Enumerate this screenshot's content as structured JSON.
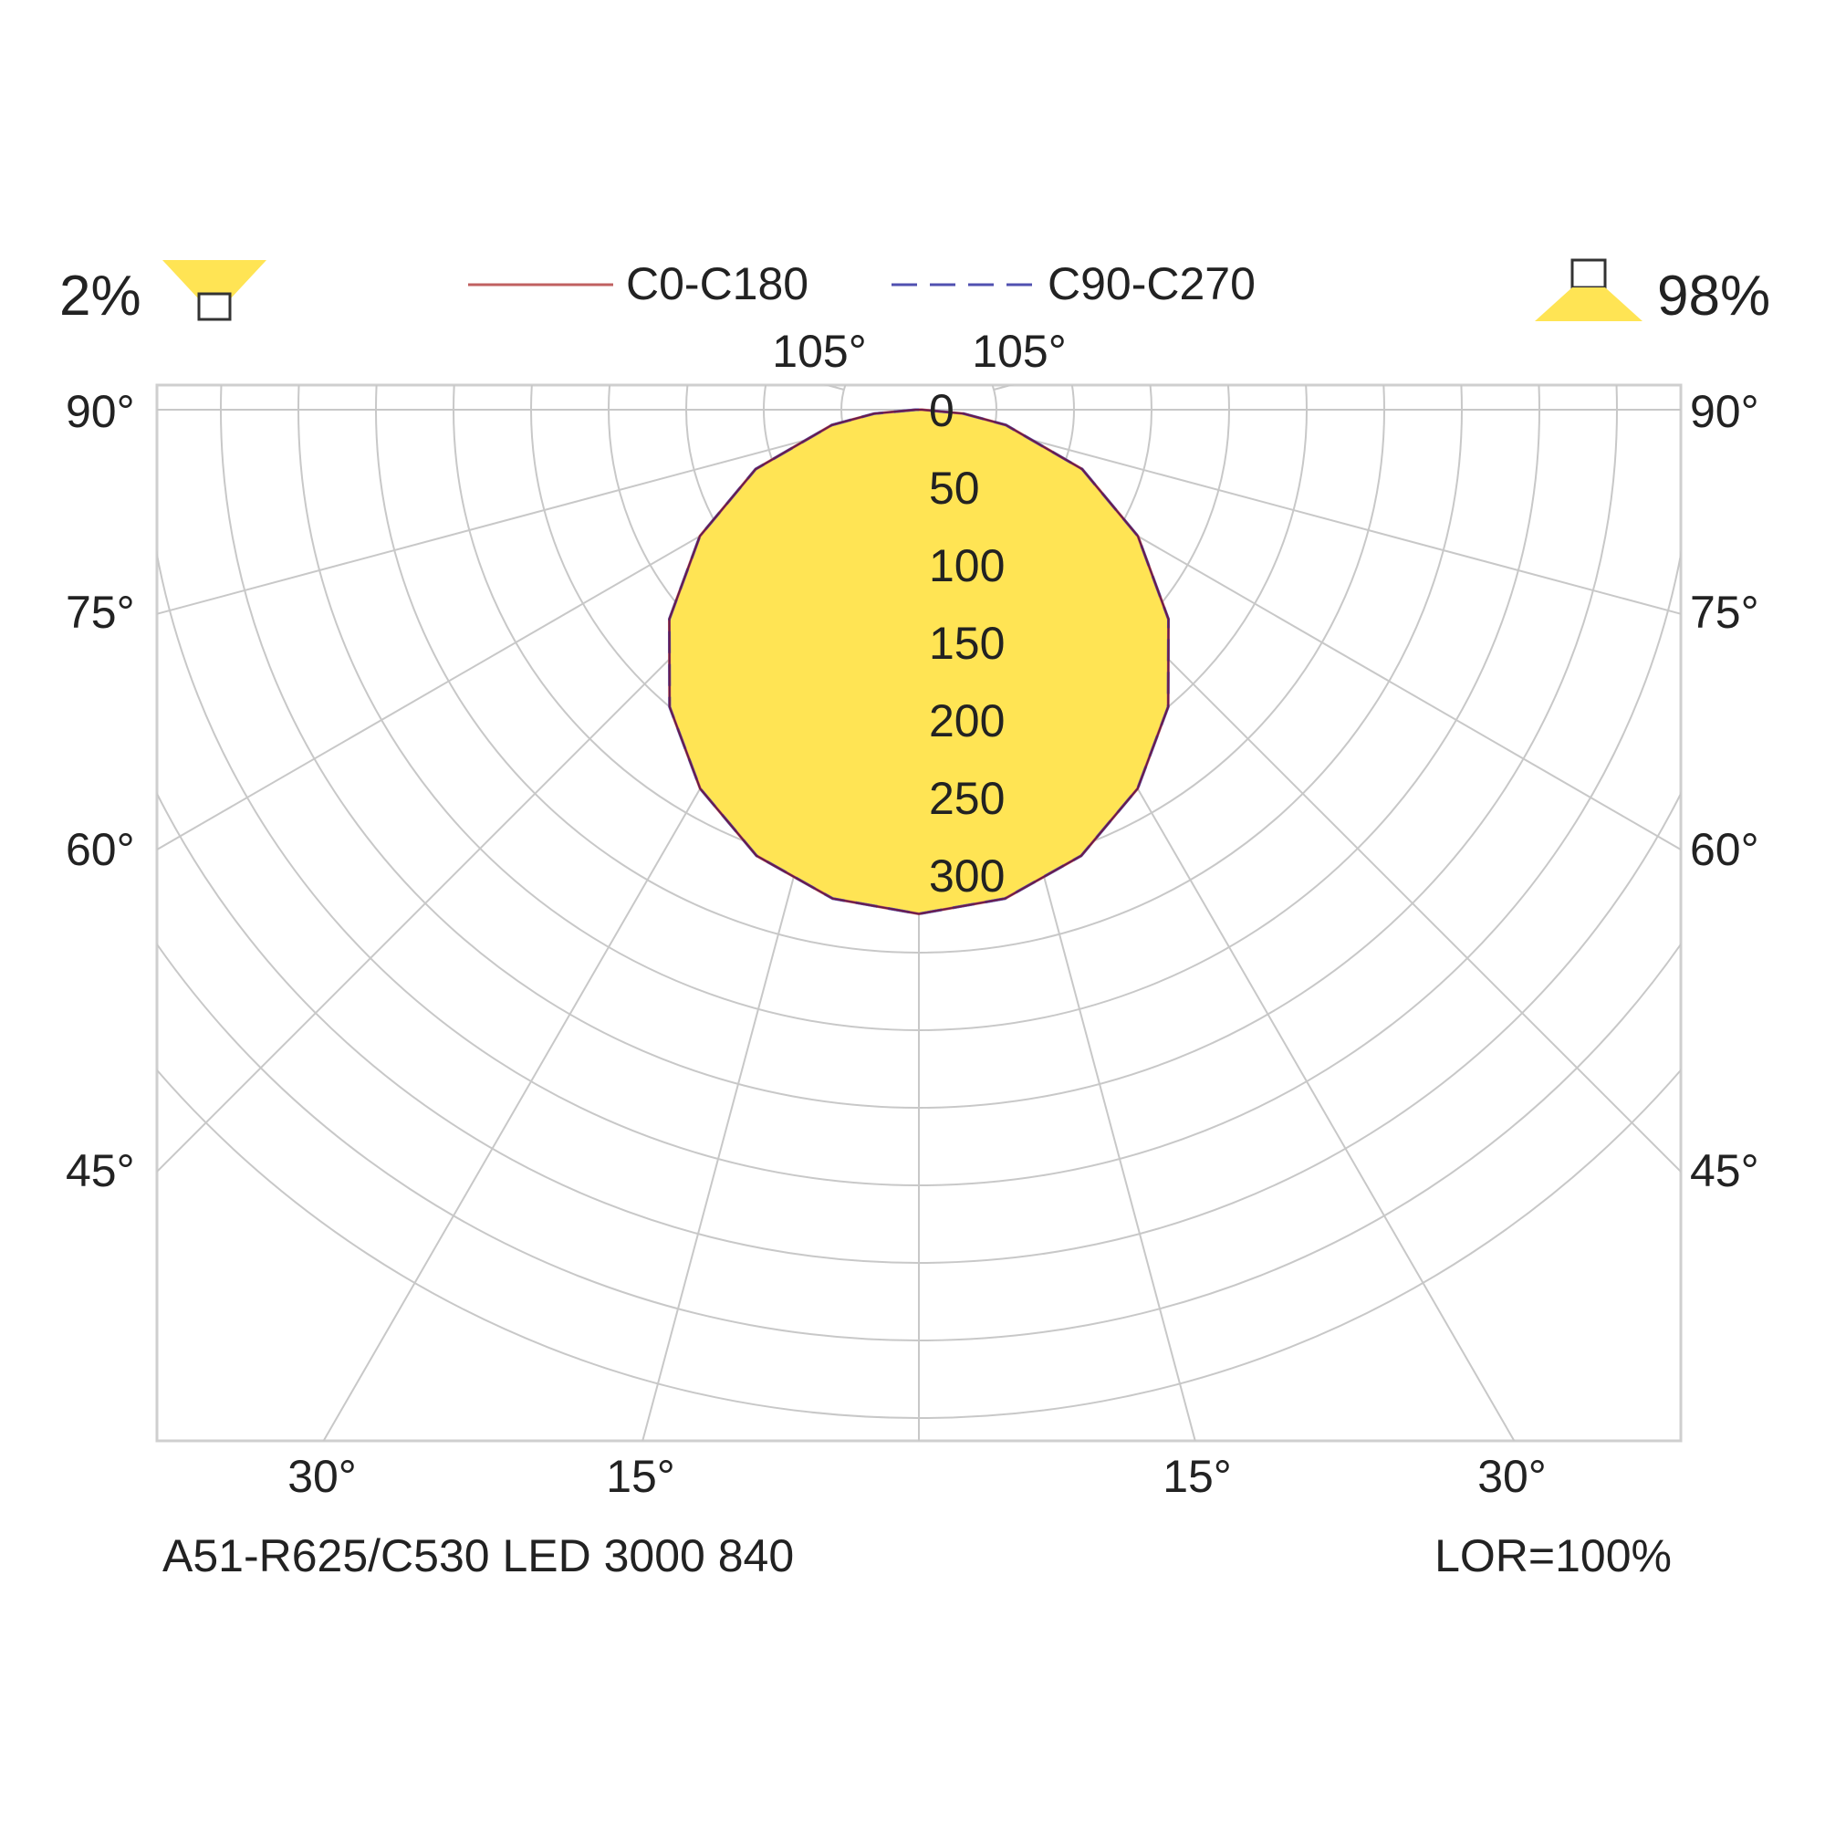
{
  "chart_data": {
    "type": "polar-luminous-intensity",
    "title": "",
    "subtitle": "",
    "luminaire_label": "A51-R625/C530 LED 3000 840",
    "lor_label": "LOR=100%",
    "upward_percent": "2%",
    "downward_percent": "98%",
    "legend": [
      {
        "name": "C0-C180",
        "style": "solid",
        "color": "#c06060"
      },
      {
        "name": "C90-C270",
        "style": "dashed",
        "color": "#5050b0"
      }
    ],
    "radial_ticks": [
      "0",
      "50",
      "100",
      "150",
      "200",
      "250",
      "300"
    ],
    "radial_tick_values": [
      0,
      50,
      100,
      150,
      200,
      250,
      300
    ],
    "top_angle_labels": [
      "105°",
      "105°"
    ],
    "side_angle_labels": [
      "90°",
      "75°",
      "60°",
      "45°"
    ],
    "bottom_angle_labels": [
      "30°",
      "15°",
      "15°",
      "30°"
    ],
    "intensity_max": 325,
    "series": [
      {
        "name": "C0-C180",
        "gamma_deg": [
          0,
          10,
          20,
          30,
          40,
          50,
          60,
          70,
          80,
          85,
          90
        ],
        "intensity": [
          325,
          320,
          306,
          282,
          250,
          210,
          163,
          112,
          57,
          29,
          2
        ]
      },
      {
        "name": "C90-C270",
        "gamma_deg": [
          0,
          10,
          20,
          30,
          40,
          50,
          60,
          70,
          80,
          85,
          90
        ],
        "intensity": [
          325,
          320,
          306,
          282,
          250,
          210,
          163,
          112,
          57,
          29,
          2
        ]
      }
    ],
    "colors": {
      "fill": "#ffe454",
      "grid": "#c8c8c8",
      "frame": "#cfcfcf",
      "c0_line": "#c06060",
      "c90_line": "#5050b0",
      "outline": "#6a1a4a",
      "icon_fill": "#ffe454"
    }
  }
}
